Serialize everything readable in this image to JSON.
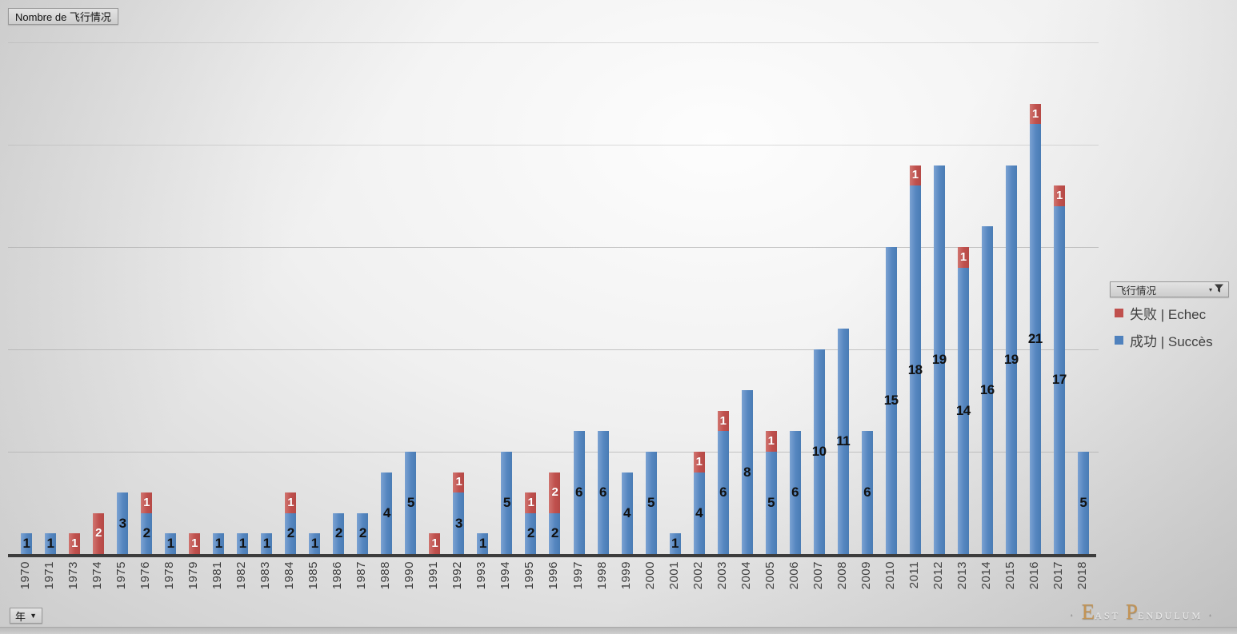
{
  "title_button": "Nombre de 飞行情况",
  "year_button": {
    "label": "年"
  },
  "legend": {
    "field_button": "飞行情况",
    "items": [
      {
        "label": "失败 | Echec",
        "color": "#c0504d"
      },
      {
        "label": "成功 | Succès",
        "color": "#4f81bd"
      }
    ]
  },
  "watermark": {
    "dot_left": "·",
    "word1_initial": "E",
    "word1_rest": "ast",
    "word2_initial": "P",
    "word2_rest": "endulum",
    "dot_right": "·"
  },
  "colors": {
    "success": "#4f81bd",
    "fail": "#c0504d",
    "gridline": "#ababab",
    "axis_line": "#3c3c3c",
    "label_dark": "#111111",
    "label_light": "#ffffff",
    "tick_label": "#3d3d3d"
  },
  "chart_data": {
    "type": "bar",
    "stacked": true,
    "title": "Nombre de 飞行情况",
    "xlabel": "年",
    "ylabel": "",
    "ylim": [
      0,
      27.5
    ],
    "gridline_values": [
      5,
      10,
      15,
      20,
      25
    ],
    "grid": true,
    "legend_position": "right",
    "data_labels": true,
    "categories": [
      "1970",
      "1971",
      "1973",
      "1974",
      "1975",
      "1976",
      "1978",
      "1979",
      "1981",
      "1982",
      "1983",
      "1984",
      "1985",
      "1986",
      "1987",
      "1988",
      "1990",
      "1991",
      "1992",
      "1993",
      "1994",
      "1995",
      "1996",
      "1997",
      "1998",
      "1999",
      "2000",
      "2001",
      "2002",
      "2003",
      "2004",
      "2005",
      "2006",
      "2007",
      "2008",
      "2009",
      "2010",
      "2011",
      "2012",
      "2013",
      "2014",
      "2015",
      "2016",
      "2017",
      "2018"
    ],
    "series": [
      {
        "name": "成功 | Succès",
        "color": "#4f81bd",
        "values": [
          1,
          1,
          0,
          0,
          3,
          2,
          1,
          0,
          1,
          1,
          1,
          2,
          1,
          2,
          2,
          4,
          5,
          0,
          3,
          1,
          5,
          2,
          2,
          6,
          6,
          4,
          5,
          1,
          4,
          6,
          8,
          5,
          6,
          10,
          11,
          6,
          15,
          18,
          19,
          14,
          16,
          19,
          21,
          17,
          5
        ]
      },
      {
        "name": "失败 | Echec",
        "color": "#c0504d",
        "values": [
          0,
          0,
          1,
          2,
          0,
          1,
          0,
          1,
          0,
          0,
          0,
          1,
          0,
          0,
          0,
          0,
          0,
          1,
          1,
          0,
          0,
          1,
          2,
          0,
          0,
          0,
          0,
          0,
          1,
          1,
          0,
          1,
          0,
          0,
          0,
          0,
          0,
          1,
          0,
          1,
          0,
          0,
          1,
          1,
          0
        ]
      }
    ]
  }
}
